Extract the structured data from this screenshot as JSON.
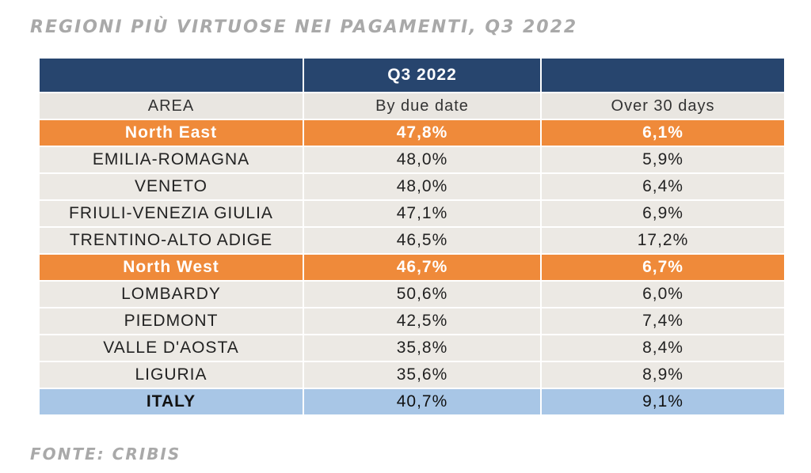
{
  "title": "REGIONI PIÙ VIRTUOSE NEI PAGAMENTI, Q3 2022",
  "source": "FONTE: CRIBIS",
  "colors": {
    "header": "#27456e",
    "macro_region": "#ef8a3a",
    "region": "#ece9e4",
    "total": "#a8c6e6",
    "title_text": "#a9a9a9"
  },
  "chart_data": {
    "type": "table",
    "title": "REGIONI PIÙ VIRTUOSE NEI PAGAMENTI, Q3 2022",
    "group_header": "Q3 2022",
    "columns": [
      "AREA",
      "By due date",
      "Over 30 days"
    ],
    "rows": [
      {
        "kind": "macro",
        "area": "North East",
        "by_due_date": "47,8%",
        "over_30_days": "6,1%"
      },
      {
        "kind": "region",
        "area": "EMILIA-ROMAGNA",
        "by_due_date": "48,0%",
        "over_30_days": "5,9%"
      },
      {
        "kind": "region",
        "area": "VENETO",
        "by_due_date": "48,0%",
        "over_30_days": "6,4%"
      },
      {
        "kind": "region",
        "area": "FRIULI-VENEZIA GIULIA",
        "by_due_date": "47,1%",
        "over_30_days": "6,9%"
      },
      {
        "kind": "region",
        "area": "TRENTINO-ALTO ADIGE",
        "by_due_date": "46,5%",
        "over_30_days": "17,2%"
      },
      {
        "kind": "macro",
        "area": "North West",
        "by_due_date": "46,7%",
        "over_30_days": "6,7%"
      },
      {
        "kind": "region",
        "area": "LOMBARDY",
        "by_due_date": "50,6%",
        "over_30_days": "6,0%"
      },
      {
        "kind": "region",
        "area": "PIEDMONT",
        "by_due_date": "42,5%",
        "over_30_days": "7,4%"
      },
      {
        "kind": "region",
        "area": "VALLE D'AOSTA",
        "by_due_date": "35,8%",
        "over_30_days": "8,4%"
      },
      {
        "kind": "region",
        "area": "LIGURIA",
        "by_due_date": "35,6%",
        "over_30_days": "8,9%"
      },
      {
        "kind": "total",
        "area": "ITALY",
        "by_due_date": "40,7%",
        "over_30_days": "9,1%"
      }
    ]
  }
}
